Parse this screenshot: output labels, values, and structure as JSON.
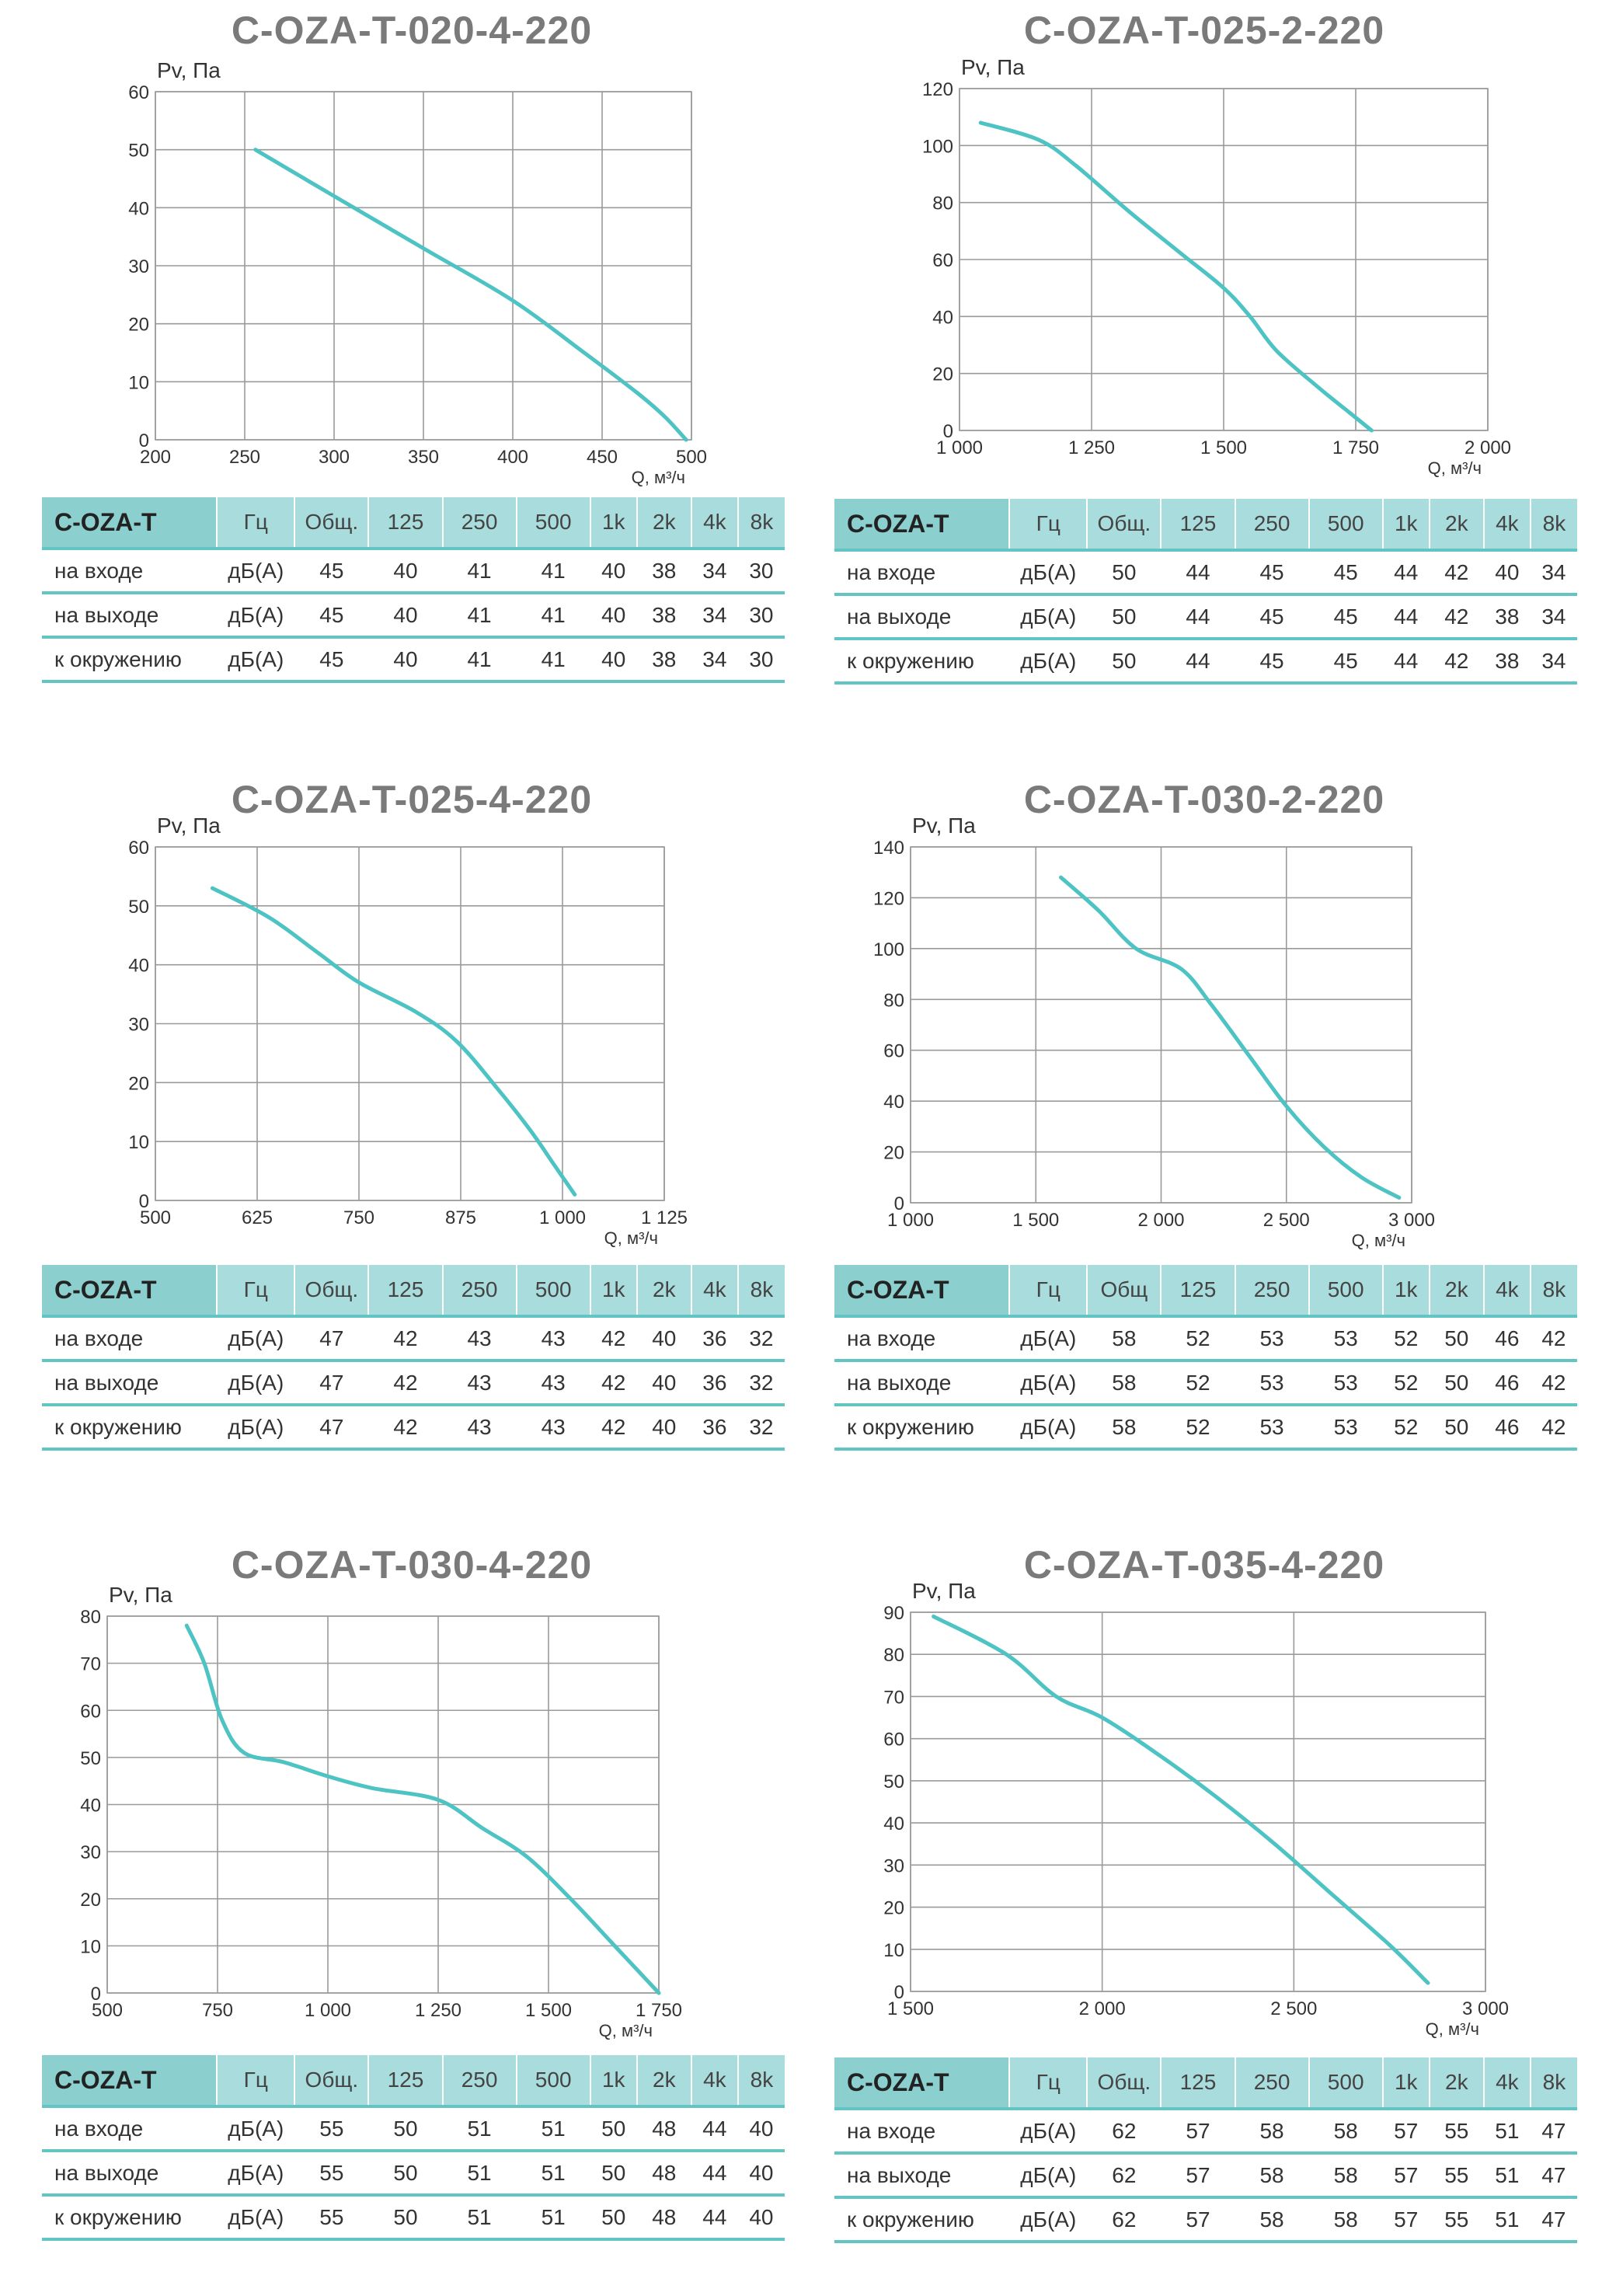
{
  "charts": [
    {
      "title": "C-OZA-T-020-4-220",
      "chart_data": {
        "type": "line",
        "title": "C-OZA-T-020-4-220",
        "xlabel": "Q, м³/ч",
        "ylabel": "Pv, Па",
        "xlim": [
          200,
          500
        ],
        "ylim": [
          0,
          60
        ],
        "xticks": [
          200,
          250,
          300,
          350,
          400,
          450,
          500
        ],
        "xticklabels": [
          "200",
          "250",
          "300",
          "350",
          "400",
          "450",
          "500"
        ],
        "yticks": [
          0,
          10,
          20,
          30,
          40,
          50,
          60
        ],
        "yticklabels": [
          "0",
          "10",
          "20",
          "30",
          "40",
          "50",
          "60"
        ],
        "grid": true,
        "series": [
          {
            "x": [
              256,
              300,
              350,
              400,
              440,
              470,
              485,
              497
            ],
            "y": [
              50,
              42,
              33,
              24,
              15,
              8,
              4,
              0
            ]
          }
        ]
      },
      "table": {
        "model": "C-OZA-T",
        "unit_header": "Гц",
        "columns": [
          "Общ.",
          "125",
          "250",
          "500",
          "1k",
          "2k",
          "4k",
          "8k"
        ],
        "rows": [
          {
            "label": "на входе",
            "unit": "дБ(А)",
            "values": [
              "45",
              "40",
              "41",
              "41",
              "40",
              "38",
              "34",
              "30"
            ]
          },
          {
            "label": "на выходе",
            "unit": "дБ(А)",
            "values": [
              "45",
              "40",
              "41",
              "41",
              "40",
              "38",
              "34",
              "30"
            ]
          },
          {
            "label": "к окружению",
            "unit": "дБ(А)",
            "values": [
              "45",
              "40",
              "41",
              "41",
              "40",
              "38",
              "34",
              "30"
            ]
          }
        ]
      }
    },
    {
      "title": "C-OZA-T-025-2-220",
      "chart_data": {
        "type": "line",
        "title": "C-OZA-T-025-2-220",
        "xlabel": "Q, м³/ч",
        "ylabel": "Pv, Па",
        "xlim": [
          1000,
          2000
        ],
        "ylim": [
          0,
          120
        ],
        "xticks": [
          1000,
          1250,
          1500,
          1750,
          2000
        ],
        "xticklabels": [
          "1 000",
          "1 250",
          "1 500",
          "1 750",
          "2 000"
        ],
        "yticks": [
          0,
          20,
          40,
          60,
          80,
          100,
          120
        ],
        "yticklabels": [
          "0",
          "20",
          "40",
          "60",
          "80",
          "100",
          "120"
        ],
        "grid": true,
        "series": [
          {
            "x": [
              1040,
              1150,
              1220,
              1320,
              1420,
              1500,
              1550,
              1600,
              1680,
              1740,
              1780
            ],
            "y": [
              108,
              102,
              93,
              77,
              62,
              50,
              40,
              28,
              15,
              6,
              0
            ]
          }
        ]
      },
      "table": {
        "model": "C-OZA-T",
        "unit_header": "Гц",
        "columns": [
          "Общ.",
          "125",
          "250",
          "500",
          "1k",
          "2k",
          "4k",
          "8k"
        ],
        "rows": [
          {
            "label": "на входе",
            "unit": "дБ(А)",
            "values": [
              "50",
              "44",
              "45",
              "45",
              "44",
              "42",
              "40",
              "34"
            ]
          },
          {
            "label": "на выходе",
            "unit": "дБ(А)",
            "values": [
              "50",
              "44",
              "45",
              "45",
              "44",
              "42",
              "38",
              "34"
            ]
          },
          {
            "label": "к окружению",
            "unit": "дБ(А)",
            "values": [
              "50",
              "44",
              "45",
              "45",
              "44",
              "42",
              "38",
              "34"
            ]
          }
        ]
      }
    },
    {
      "title": "C-OZA-T-025-4-220",
      "chart_data": {
        "type": "line",
        "title": "C-OZA-T-025-4-220",
        "xlabel": "Q, м³/ч",
        "ylabel": "Pv, Па",
        "xlim": [
          500,
          1125
        ],
        "ylim": [
          0,
          60
        ],
        "xticks": [
          500,
          625,
          750,
          875,
          1000,
          1125
        ],
        "xticklabels": [
          "500",
          "625",
          "750",
          "875",
          "1 000",
          "1 125"
        ],
        "yticks": [
          0,
          10,
          20,
          30,
          40,
          50,
          60
        ],
        "yticklabels": [
          "0",
          "10",
          "20",
          "30",
          "40",
          "50",
          "60"
        ],
        "grid": true,
        "series": [
          {
            "x": [
              570,
              640,
              700,
              750,
              820,
              870,
              920,
              960,
              990,
              1015
            ],
            "y": [
              53,
              48,
              42,
              37,
              32,
              27,
              19,
              12,
              6,
              1
            ]
          }
        ]
      },
      "table": {
        "model": "C-OZA-T",
        "unit_header": "Гц",
        "columns": [
          "Общ.",
          "125",
          "250",
          "500",
          "1k",
          "2k",
          "4k",
          "8k"
        ],
        "rows": [
          {
            "label": "на входе",
            "unit": "дБ(А)",
            "values": [
              "47",
              "42",
              "43",
              "43",
              "42",
              "40",
              "36",
              "32"
            ]
          },
          {
            "label": "на выходе",
            "unit": "дБ(А)",
            "values": [
              "47",
              "42",
              "43",
              "43",
              "42",
              "40",
              "36",
              "32"
            ]
          },
          {
            "label": "к окружению",
            "unit": "дБ(А)",
            "values": [
              "47",
              "42",
              "43",
              "43",
              "42",
              "40",
              "36",
              "32"
            ]
          }
        ]
      }
    },
    {
      "title": "C-OZA-T-030-2-220",
      "chart_data": {
        "type": "line",
        "title": "C-OZA-T-030-2-220",
        "xlabel": "Q, м³/ч",
        "ylabel": "Pv, Па",
        "xlim": [
          1000,
          3000
        ],
        "ylim": [
          0,
          140
        ],
        "xticks": [
          1000,
          1500,
          2000,
          2500,
          3000
        ],
        "xticklabels": [
          "1 000",
          "1 500",
          "2 000",
          "2 500",
          "3 000"
        ],
        "yticks": [
          0,
          20,
          40,
          60,
          80,
          100,
          120,
          140
        ],
        "yticklabels": [
          "0",
          "20",
          "40",
          "60",
          "80",
          "100",
          "120",
          "140"
        ],
        "grid": true,
        "series": [
          {
            "x": [
              1600,
              1750,
              1900,
              2080,
              2200,
              2350,
              2500,
              2650,
              2800,
              2950
            ],
            "y": [
              128,
              115,
              100,
              92,
              78,
              58,
              38,
              22,
              10,
              2
            ]
          }
        ]
      },
      "table": {
        "model": "C-OZA-T",
        "unit_header": "Гц",
        "columns": [
          "Общ",
          "125",
          "250",
          "500",
          "1k",
          "2k",
          "4k",
          "8k"
        ],
        "rows": [
          {
            "label": "на входе",
            "unit": "дБ(А)",
            "values": [
              "58",
              "52",
              "53",
              "53",
              "52",
              "50",
              "46",
              "42"
            ]
          },
          {
            "label": "на выходе",
            "unit": "дБ(А)",
            "values": [
              "58",
              "52",
              "53",
              "53",
              "52",
              "50",
              "46",
              "42"
            ]
          },
          {
            "label": "к окружению",
            "unit": "дБ(А)",
            "values": [
              "58",
              "52",
              "53",
              "53",
              "52",
              "50",
              "46",
              "42"
            ]
          }
        ]
      }
    },
    {
      "title": "C-OZA-T-030-4-220",
      "chart_data": {
        "type": "line",
        "title": "C-OZA-T-030-4-220",
        "xlabel": "Q, м³/ч",
        "ylabel": "Pv, Па",
        "xlim": [
          500,
          1750
        ],
        "ylim": [
          0,
          80
        ],
        "xticks": [
          500,
          750,
          1000,
          1250,
          1500,
          1750
        ],
        "xticklabels": [
          "500",
          "750",
          "1 000",
          "1 250",
          "1 500",
          "1 750"
        ],
        "yticks": [
          0,
          10,
          20,
          30,
          40,
          50,
          60,
          70,
          80
        ],
        "yticklabels": [
          "0",
          "10",
          "20",
          "30",
          "40",
          "50",
          "60",
          "70",
          "80"
        ],
        "grid": true,
        "series": [
          {
            "x": [
              680,
              720,
              760,
              810,
              900,
              1000,
              1100,
              1250,
              1350,
              1450,
              1550,
              1650,
              1750
            ],
            "y": [
              78,
              70,
              58,
              51,
              49,
              46,
              43.5,
              41,
              35,
              29,
              20,
              10,
              0
            ]
          }
        ]
      },
      "table": {
        "model": "C-OZA-T",
        "unit_header": "Гц",
        "columns": [
          "Общ.",
          "125",
          "250",
          "500",
          "1k",
          "2k",
          "4k",
          "8k"
        ],
        "rows": [
          {
            "label": "на входе",
            "unit": "дБ(А)",
            "values": [
              "55",
              "50",
              "51",
              "51",
              "50",
              "48",
              "44",
              "40"
            ]
          },
          {
            "label": "на выходе",
            "unit": "дБ(А)",
            "values": [
              "55",
              "50",
              "51",
              "51",
              "50",
              "48",
              "44",
              "40"
            ]
          },
          {
            "label": "к окружению",
            "unit": "дБ(А)",
            "values": [
              "55",
              "50",
              "51",
              "51",
              "50",
              "48",
              "44",
              "40"
            ]
          }
        ]
      }
    },
    {
      "title": "C-OZA-T-035-4-220",
      "chart_data": {
        "type": "line",
        "title": "C-OZA-T-035-4-220",
        "xlabel": "Q, м³/ч",
        "ylabel": "Pv, Па",
        "xlim": [
          1500,
          3000
        ],
        "ylim": [
          0,
          90
        ],
        "xticks": [
          1500,
          2000,
          2500,
          3000
        ],
        "xticklabels": [
          "1 500",
          "2 000",
          "2 500",
          "3 000"
        ],
        "yticks": [
          0,
          10,
          20,
          30,
          40,
          50,
          60,
          70,
          80,
          90
        ],
        "yticklabels": [
          "0",
          "10",
          "20",
          "30",
          "40",
          "50",
          "60",
          "70",
          "80",
          "90"
        ],
        "grid": true,
        "series": [
          {
            "x": [
              1560,
              1750,
              1880,
              2000,
              2150,
              2300,
              2450,
              2600,
              2750,
              2850
            ],
            "y": [
              89,
              80,
              70,
              65,
              56,
              46,
              35,
              23,
              11,
              2
            ]
          }
        ]
      },
      "table": {
        "model": "C-OZA-T",
        "unit_header": "Гц",
        "columns": [
          "Общ.",
          "125",
          "250",
          "500",
          "1k",
          "2k",
          "4k",
          "8k"
        ],
        "rows": [
          {
            "label": "на входе",
            "unit": "дБ(А)",
            "values": [
              "62",
              "57",
              "58",
              "58",
              "57",
              "55",
              "51",
              "47"
            ]
          },
          {
            "label": "на выходе",
            "unit": "дБ(А)",
            "values": [
              "62",
              "57",
              "58",
              "58",
              "57",
              "55",
              "51",
              "47"
            ]
          },
          {
            "label": "к окружению",
            "unit": "дБ(А)",
            "values": [
              "62",
              "57",
              "58",
              "58",
              "57",
              "55",
              "51",
              "47"
            ]
          }
        ]
      }
    }
  ]
}
